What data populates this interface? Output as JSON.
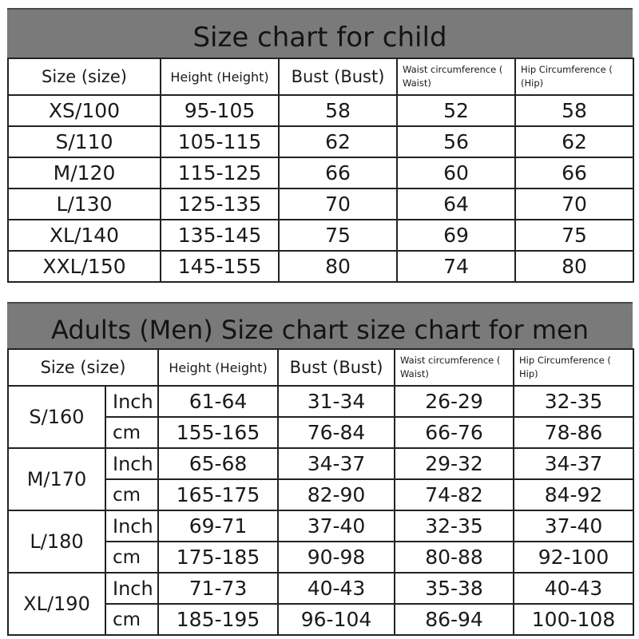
{
  "child": {
    "title": "Size chart for child",
    "headers": {
      "size": "Size (size)",
      "height": "Height (Height)",
      "bust": "Bust (Bust)",
      "waist": "Waist circumference ( Waist)",
      "hip": "Hip Circumference ( (Hip)"
    },
    "rows": [
      {
        "size": "XS/100",
        "height": "95-105",
        "bust": "58",
        "waist": "52",
        "hip": "58"
      },
      {
        "size": "S/110",
        "height": "105-115",
        "bust": "62",
        "waist": "56",
        "hip": "62"
      },
      {
        "size": "M/120",
        "height": "115-125",
        "bust": "66",
        "waist": "60",
        "hip": "66"
      },
      {
        "size": "L/130",
        "height": "125-135",
        "bust": "70",
        "waist": "64",
        "hip": "70"
      },
      {
        "size": "XL/140",
        "height": "135-145",
        "bust": "75",
        "waist": "69",
        "hip": "75"
      },
      {
        "size": "XXL/150",
        "height": "145-155",
        "bust": "80",
        "waist": "74",
        "hip": "80"
      }
    ]
  },
  "men": {
    "title": "Adults (Men) Size chart size chart for men",
    "headers": {
      "size": "Size (size)",
      "height": "Height (Height)",
      "bust": "Bust (Bust)",
      "waist": "Waist circumference ( Waist)",
      "hip": "Hip Circumference ( Hip)"
    },
    "sizes": [
      {
        "size": "S/160",
        "inch": {
          "unit": "Inch",
          "height": "61-64",
          "bust": "31-34",
          "waist": "26-29",
          "hip": "32-35"
        },
        "cm": {
          "unit": "cm",
          "height": "155-165",
          "bust": "76-84",
          "waist": "66-76",
          "hip": "78-86"
        }
      },
      {
        "size": "M/170",
        "inch": {
          "unit": "Inch",
          "height": "65-68",
          "bust": "34-37",
          "waist": "29-32",
          "hip": "34-37"
        },
        "cm": {
          "unit": "cm",
          "height": "165-175",
          "bust": "82-90",
          "waist": "74-82",
          "hip": "84-92"
        }
      },
      {
        "size": "L/180",
        "inch": {
          "unit": "Inch",
          "height": "69-71",
          "bust": "37-40",
          "waist": "32-35",
          "hip": "37-40"
        },
        "cm": {
          "unit": "cm",
          "height": "175-185",
          "bust": "90-98",
          "waist": "80-88",
          "hip": "92-100"
        }
      },
      {
        "size": "XL/190",
        "inch": {
          "unit": "Inch",
          "height": "71-73",
          "bust": "40-43",
          "waist": "35-38",
          "hip": "40-43"
        },
        "cm": {
          "unit": "cm",
          "height": "185-195",
          "bust": "96-104",
          "waist": "86-94",
          "hip": "100-108"
        }
      }
    ]
  }
}
